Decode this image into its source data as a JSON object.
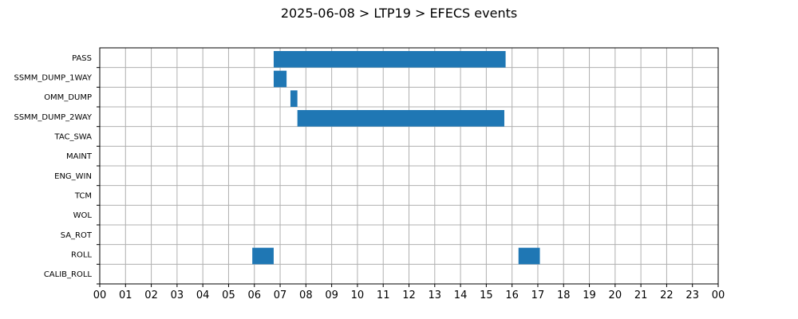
{
  "chart_data": {
    "type": "bar",
    "orientation": "horizontal",
    "title": "2025-06-08 > LTP19 > EFECS events",
    "xlabel": "",
    "ylabel": "",
    "x_tick_labels": [
      "00",
      "01",
      "02",
      "03",
      "04",
      "05",
      "06",
      "07",
      "08",
      "09",
      "10",
      "11",
      "12",
      "13",
      "14",
      "15",
      "16",
      "17",
      "18",
      "19",
      "20",
      "21",
      "22",
      "23",
      "00"
    ],
    "categories": [
      "PASS",
      "SSMM_DUMP_1WAY",
      "OMM_DUMP",
      "SSMM_DUMP_2WAY",
      "TAC_SWA",
      "MAINT",
      "ENG_WIN",
      "TCM",
      "WOL",
      "SA_ROT",
      "ROLL",
      "CALIB_ROLL"
    ],
    "events": [
      {
        "category": "PASS",
        "start_hour": 6.75,
        "end_hour": 15.75
      },
      {
        "category": "SSMM_DUMP_1WAY",
        "start_hour": 6.75,
        "end_hour": 7.25
      },
      {
        "category": "OMM_DUMP",
        "start_hour": 7.4,
        "end_hour": 7.67
      },
      {
        "category": "SSMM_DUMP_2WAY",
        "start_hour": 7.67,
        "end_hour": 15.7
      },
      {
        "category": "ROLL",
        "start_hour": 5.92,
        "end_hour": 6.75
      },
      {
        "category": "ROLL",
        "start_hour": 16.25,
        "end_hour": 17.08
      }
    ],
    "xlim": [
      0,
      24
    ],
    "grid": true,
    "bar_color": "#1f77b4"
  }
}
